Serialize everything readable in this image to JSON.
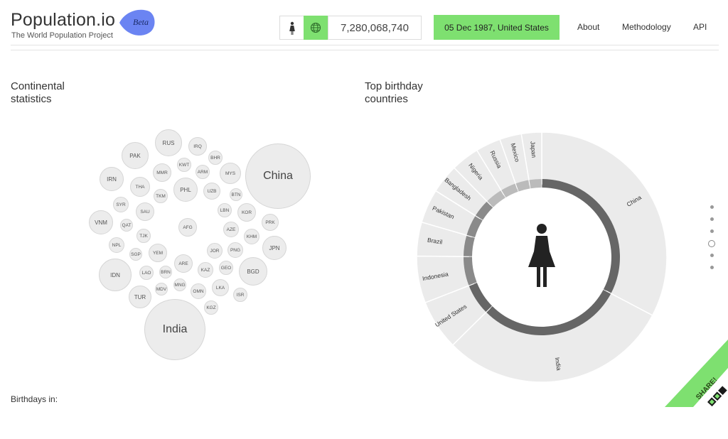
{
  "header": {
    "logo_title": "Population.io",
    "logo_subtitle": "The World Population Project",
    "beta_label": "Beta",
    "population_value": "7,280,068,740",
    "date_country": "05 Dec 1987, United States",
    "nav": [
      {
        "label": "About"
      },
      {
        "label": "Methodology"
      },
      {
        "label": "API"
      }
    ],
    "gender_icon": "female-person-icon",
    "globe_icon": "globe-icon"
  },
  "sections": {
    "continental_title_line1": "Continental",
    "continental_title_line2": "statistics",
    "birthday_title_line1": "Top birthday",
    "birthday_title_line2": "countries",
    "birthdays_in": "Birthdays in:"
  },
  "bubbles": [
    {
      "label": "RUS"
    },
    {
      "label": "IRQ"
    },
    {
      "label": "PAK"
    },
    {
      "label": "BHR"
    },
    {
      "label": "KWT"
    },
    {
      "label": "MMR"
    },
    {
      "label": "ARM"
    },
    {
      "label": "MYS"
    },
    {
      "label": "China"
    },
    {
      "label": "IRN"
    },
    {
      "label": "THA"
    },
    {
      "label": "PHL"
    },
    {
      "label": "UZB"
    },
    {
      "label": "BTN"
    },
    {
      "label": "TKM"
    },
    {
      "label": "SYR"
    },
    {
      "label": "SAU"
    },
    {
      "label": "LBN"
    },
    {
      "label": "KOR"
    },
    {
      "label": "VNM"
    },
    {
      "label": "QAT"
    },
    {
      "label": "AFG"
    },
    {
      "label": "AZE"
    },
    {
      "label": "PRK"
    },
    {
      "label": "TJK"
    },
    {
      "label": "KHM"
    },
    {
      "label": "NPL"
    },
    {
      "label": "JPN"
    },
    {
      "label": "SGP"
    },
    {
      "label": "YEM"
    },
    {
      "label": "JOR"
    },
    {
      "label": "PNG"
    },
    {
      "label": "ARE"
    },
    {
      "label": "IDN"
    },
    {
      "label": "LAO"
    },
    {
      "label": "BRN"
    },
    {
      "label": "KAZ"
    },
    {
      "label": "GEO"
    },
    {
      "label": "BGD"
    },
    {
      "label": "MNG"
    },
    {
      "label": "TUR"
    },
    {
      "label": "MDV"
    },
    {
      "label": "OMN"
    },
    {
      "label": "LKA"
    },
    {
      "label": "ISR"
    },
    {
      "label": "KGZ"
    },
    {
      "label": "India"
    }
  ],
  "chart_data": {
    "type": "pie",
    "title": "Top birthday countries",
    "categories": [
      "China",
      "India",
      "United States",
      "Indonesia",
      "Brazil",
      "Pakistan",
      "Bangladesh",
      "Nigeria",
      "Russia",
      "Mexico",
      "Japan"
    ],
    "values": [
      31.3,
      28.6,
      6.2,
      5.8,
      4.2,
      4.2,
      3.6,
      3.5,
      3.1,
      2.7,
      2.5
    ],
    "highlight": "United States",
    "colors": {
      "slice": "#ebebeb",
      "slice_border": "#ffffff",
      "ring": "#666666",
      "ring_light": "#bbbbbb"
    }
  },
  "share": {
    "label": "SHARE!",
    "color": "#7ee070"
  },
  "colors": {
    "accent": "#7ee070",
    "beta": "#6b84f2"
  }
}
